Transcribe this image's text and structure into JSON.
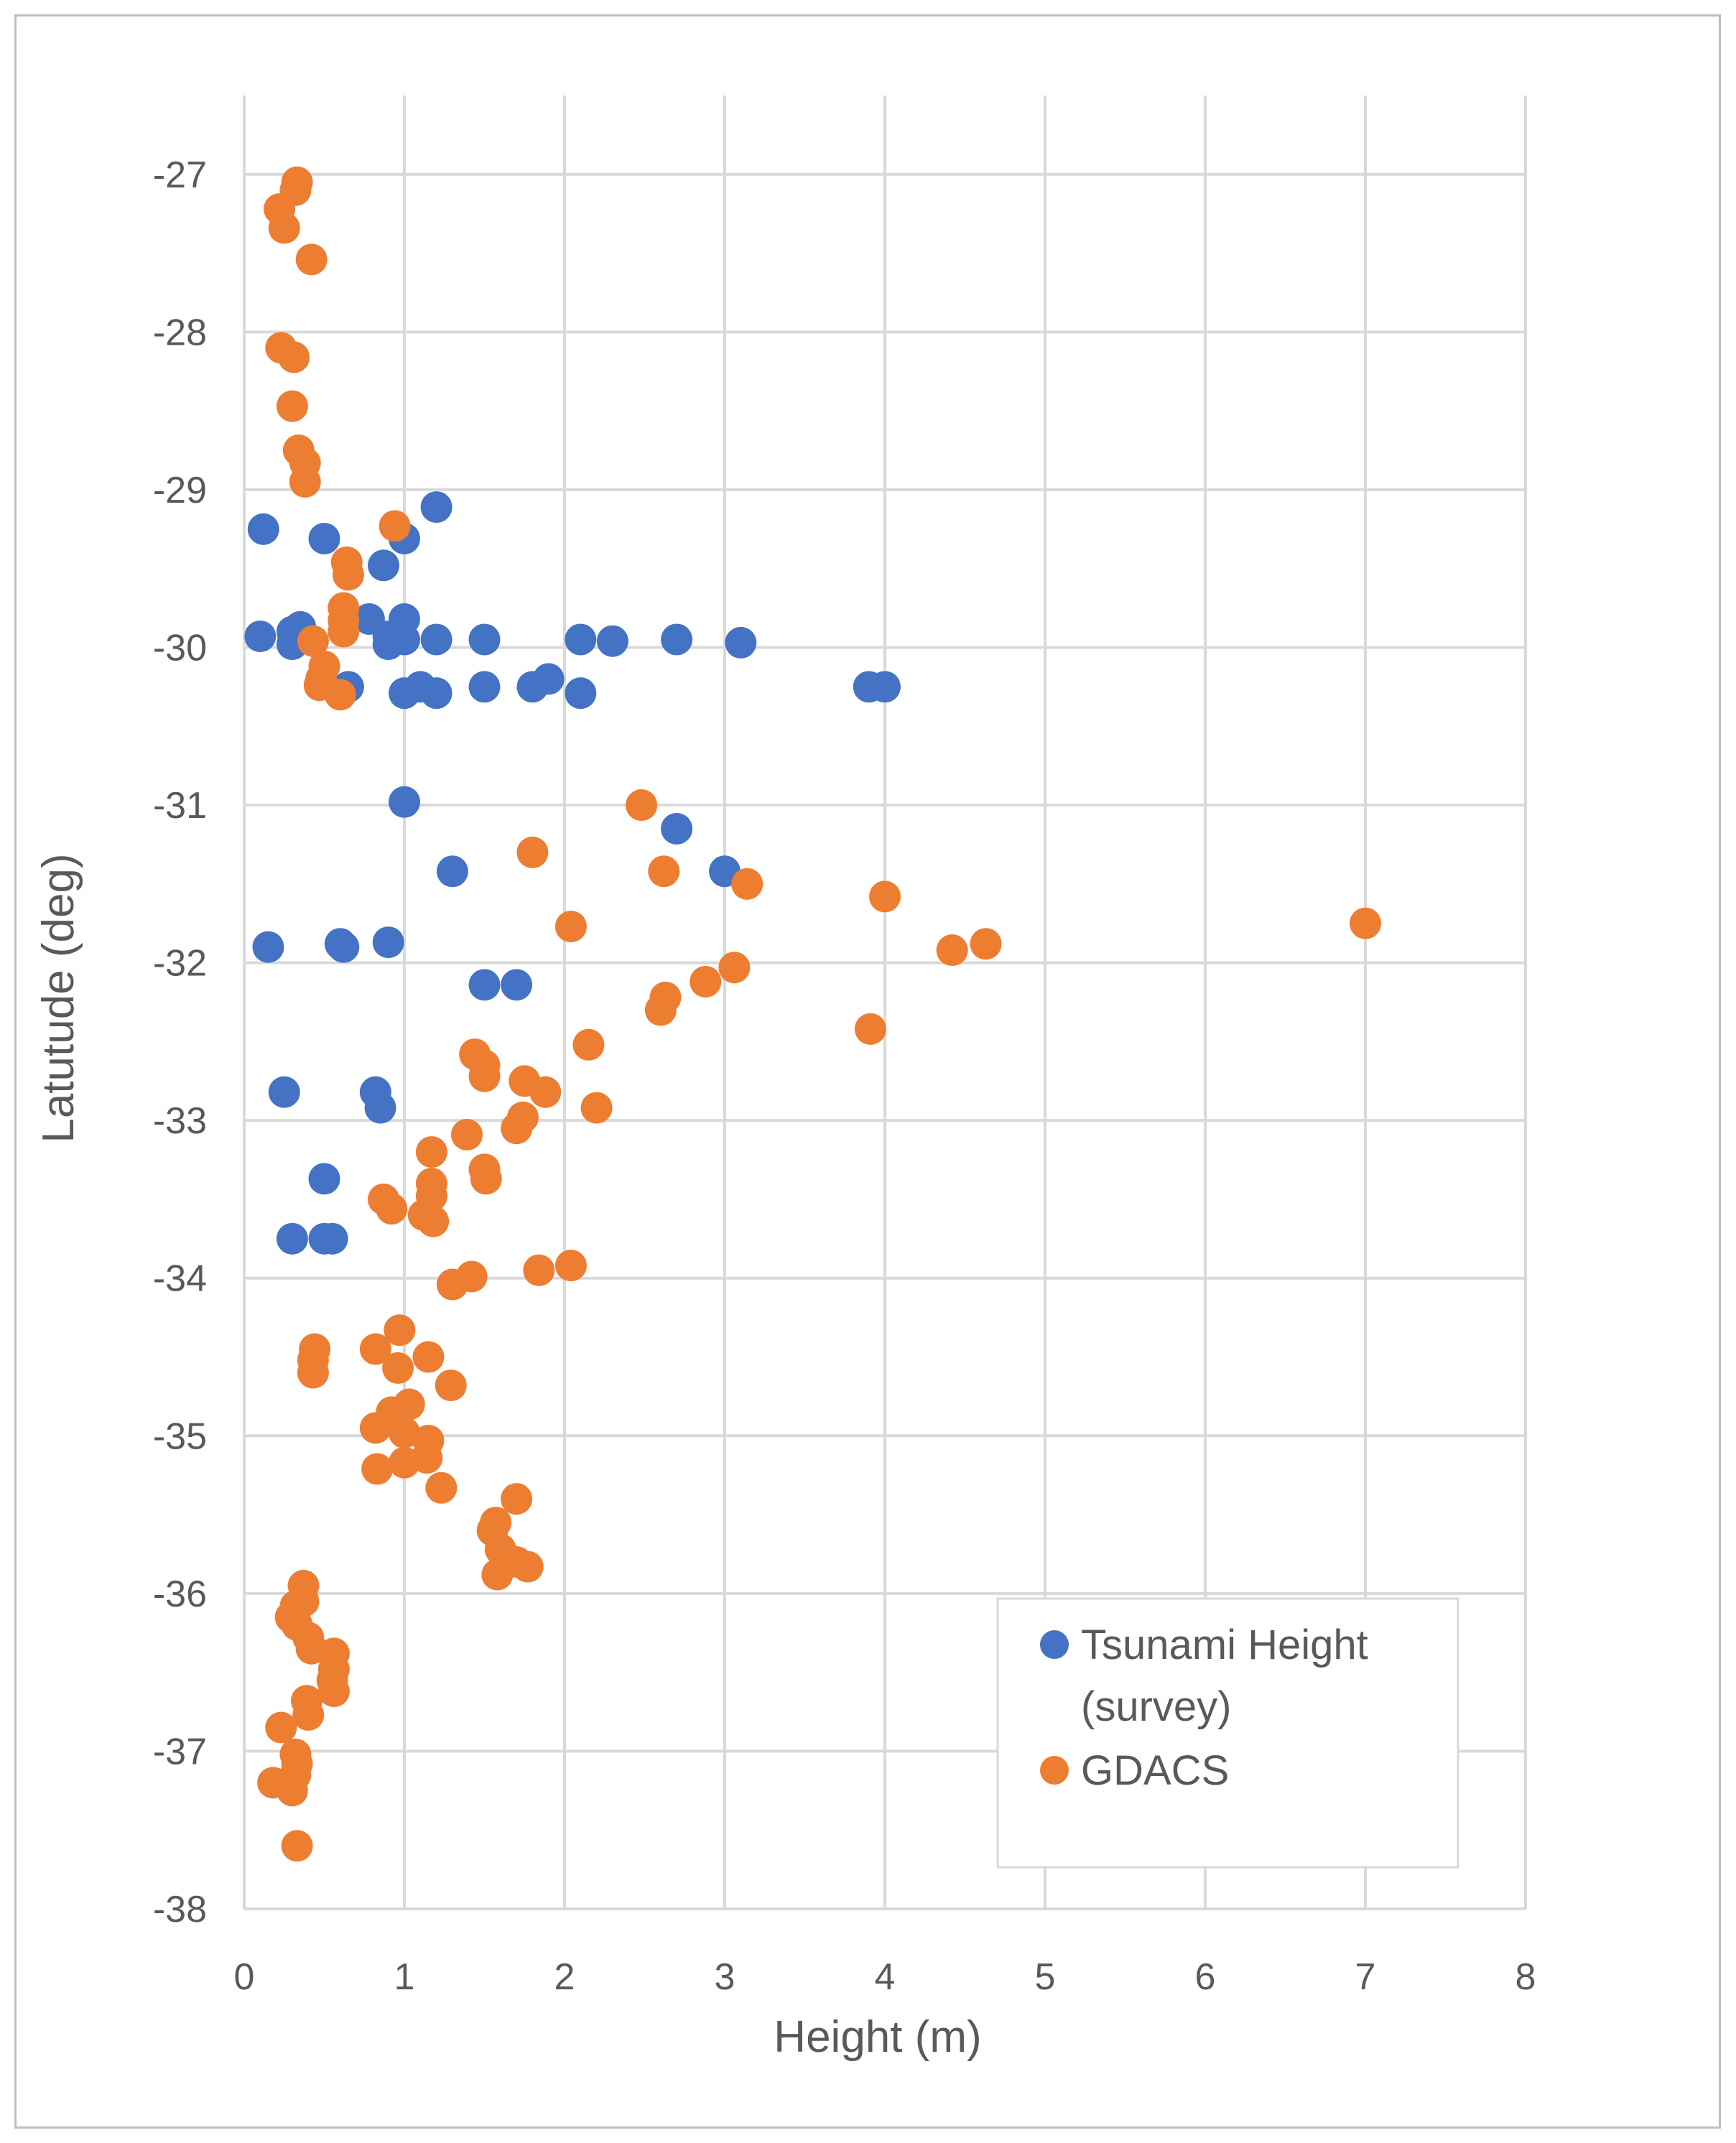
{
  "chart_data": {
    "type": "scatter",
    "title": "",
    "xlabel": "Height (m)",
    "ylabel": "Latutude (deg)",
    "xlim": [
      0,
      8
    ],
    "ylim": [
      -38,
      -26.5
    ],
    "xticks": [
      "0",
      "1",
      "2",
      "3",
      "4",
      "5",
      "6",
      "7",
      "8"
    ],
    "yticks": [
      "-27",
      "-28",
      "-29",
      "-30",
      "-31",
      "-32",
      "-33",
      "-34",
      "-35",
      "-36",
      "-37",
      "-38"
    ],
    "grid": true,
    "legend_position": "bottom-right",
    "series": [
      {
        "name": "Tsunami Height (survey)",
        "legend_lines": [
          "Tsunami Height",
          "(survey)"
        ],
        "color": "#4472c4",
        "points": [
          [
            1.2,
            -29.11
          ],
          [
            0.12,
            -29.25
          ],
          [
            0.5,
            -29.31
          ],
          [
            1.0,
            -29.31
          ],
          [
            0.87,
            -29.48
          ],
          [
            0.1,
            -29.93
          ],
          [
            0.3,
            -29.9
          ],
          [
            0.35,
            -29.87
          ],
          [
            0.3,
            -29.98
          ],
          [
            0.78,
            -29.82
          ],
          [
            1.0,
            -29.82
          ],
          [
            0.9,
            -29.93
          ],
          [
            0.9,
            -29.98
          ],
          [
            1.0,
            -29.95
          ],
          [
            1.2,
            -29.95
          ],
          [
            1.5,
            -29.95
          ],
          [
            2.1,
            -29.95
          ],
          [
            2.3,
            -29.96
          ],
          [
            2.7,
            -29.95
          ],
          [
            3.1,
            -29.97
          ],
          [
            0.65,
            -30.25
          ],
          [
            1.0,
            -30.29
          ],
          [
            1.1,
            -30.25
          ],
          [
            1.2,
            -30.29
          ],
          [
            1.5,
            -30.25
          ],
          [
            1.8,
            -30.25
          ],
          [
            1.9,
            -30.2
          ],
          [
            2.1,
            -30.29
          ],
          [
            3.9,
            -30.25
          ],
          [
            4.0,
            -30.25
          ],
          [
            1.0,
            -30.98
          ],
          [
            2.7,
            -31.15
          ],
          [
            1.3,
            -31.42
          ],
          [
            3.0,
            -31.42
          ],
          [
            0.15,
            -31.9
          ],
          [
            0.6,
            -31.88
          ],
          [
            0.62,
            -31.9
          ],
          [
            0.9,
            -31.87
          ],
          [
            1.5,
            -32.14
          ],
          [
            1.7,
            -32.14
          ],
          [
            0.25,
            -32.82
          ],
          [
            0.82,
            -32.82
          ],
          [
            0.85,
            -32.92
          ],
          [
            0.5,
            -33.37
          ],
          [
            0.3,
            -33.75
          ],
          [
            0.5,
            -33.75
          ],
          [
            0.55,
            -33.75
          ]
        ]
      },
      {
        "name": "GDACS",
        "legend_lines": [
          "GDACS"
        ],
        "color": "#ed7d31",
        "points": [
          [
            0.33,
            -27.05
          ],
          [
            0.32,
            -27.1
          ],
          [
            0.22,
            -27.22
          ],
          [
            0.25,
            -27.34
          ],
          [
            0.42,
            -27.54
          ],
          [
            0.23,
            -28.1
          ],
          [
            0.31,
            -28.16
          ],
          [
            0.3,
            -28.47
          ],
          [
            0.34,
            -28.75
          ],
          [
            0.38,
            -28.83
          ],
          [
            0.38,
            -28.95
          ],
          [
            0.94,
            -29.23
          ],
          [
            0.64,
            -29.46
          ],
          [
            0.65,
            -29.54
          ],
          [
            0.62,
            -29.75
          ],
          [
            0.62,
            -29.83
          ],
          [
            0.62,
            -29.9
          ],
          [
            0.43,
            -29.96
          ],
          [
            0.5,
            -30.12
          ],
          [
            0.48,
            -30.2
          ],
          [
            0.47,
            -30.24
          ],
          [
            0.6,
            -30.3
          ],
          [
            2.48,
            -31.0
          ],
          [
            1.8,
            -31.3
          ],
          [
            2.62,
            -31.42
          ],
          [
            3.14,
            -31.5
          ],
          [
            4.0,
            -31.58
          ],
          [
            2.04,
            -31.77
          ],
          [
            7.0,
            -31.75
          ],
          [
            4.63,
            -31.88
          ],
          [
            4.42,
            -31.92
          ],
          [
            3.06,
            -32.03
          ],
          [
            2.88,
            -32.12
          ],
          [
            2.63,
            -32.22
          ],
          [
            2.6,
            -32.3
          ],
          [
            3.91,
            -32.42
          ],
          [
            2.15,
            -32.52
          ],
          [
            1.44,
            -32.58
          ],
          [
            1.5,
            -32.65
          ],
          [
            1.5,
            -32.72
          ],
          [
            1.75,
            -32.75
          ],
          [
            1.88,
            -32.82
          ],
          [
            2.2,
            -32.92
          ],
          [
            1.74,
            -32.98
          ],
          [
            1.7,
            -33.05
          ],
          [
            1.39,
            -33.09
          ],
          [
            1.17,
            -33.2
          ],
          [
            1.5,
            -33.31
          ],
          [
            1.51,
            -33.37
          ],
          [
            1.17,
            -33.4
          ],
          [
            1.17,
            -33.48
          ],
          [
            0.87,
            -33.5
          ],
          [
            0.92,
            -33.56
          ],
          [
            1.12,
            -33.6
          ],
          [
            1.18,
            -33.64
          ],
          [
            2.04,
            -33.92
          ],
          [
            1.84,
            -33.95
          ],
          [
            1.42,
            -33.99
          ],
          [
            1.3,
            -34.04
          ],
          [
            0.97,
            -34.33
          ],
          [
            0.82,
            -34.45
          ],
          [
            0.44,
            -34.45
          ],
          [
            0.43,
            -34.52
          ],
          [
            1.15,
            -34.5
          ],
          [
            0.43,
            -34.6
          ],
          [
            0.96,
            -34.57
          ],
          [
            1.29,
            -34.68
          ],
          [
            1.03,
            -34.8
          ],
          [
            0.92,
            -34.85
          ],
          [
            0.82,
            -34.95
          ],
          [
            1.0,
            -34.98
          ],
          [
            1.15,
            -35.03
          ],
          [
            1.14,
            -35.14
          ],
          [
            1.0,
            -35.17
          ],
          [
            0.83,
            -35.21
          ],
          [
            1.23,
            -35.33
          ],
          [
            1.7,
            -35.4
          ],
          [
            1.55,
            -35.6
          ],
          [
            1.57,
            -35.55
          ],
          [
            1.6,
            -35.72
          ],
          [
            1.7,
            -35.8
          ],
          [
            1.77,
            -35.83
          ],
          [
            1.58,
            -35.88
          ],
          [
            0.37,
            -35.95
          ],
          [
            0.37,
            -36.05
          ],
          [
            0.32,
            -36.08
          ],
          [
            0.29,
            -36.15
          ],
          [
            0.33,
            -36.2
          ],
          [
            0.4,
            -36.28
          ],
          [
            0.42,
            -36.35
          ],
          [
            0.56,
            -36.38
          ],
          [
            0.56,
            -36.48
          ],
          [
            0.55,
            -36.55
          ],
          [
            0.56,
            -36.62
          ],
          [
            0.39,
            -36.68
          ],
          [
            0.4,
            -36.77
          ],
          [
            0.23,
            -36.85
          ],
          [
            0.32,
            -37.02
          ],
          [
            0.33,
            -37.08
          ],
          [
            0.32,
            -37.15
          ],
          [
            0.18,
            -37.2
          ],
          [
            0.3,
            -37.25
          ],
          [
            0.33,
            -37.6
          ]
        ]
      }
    ]
  }
}
